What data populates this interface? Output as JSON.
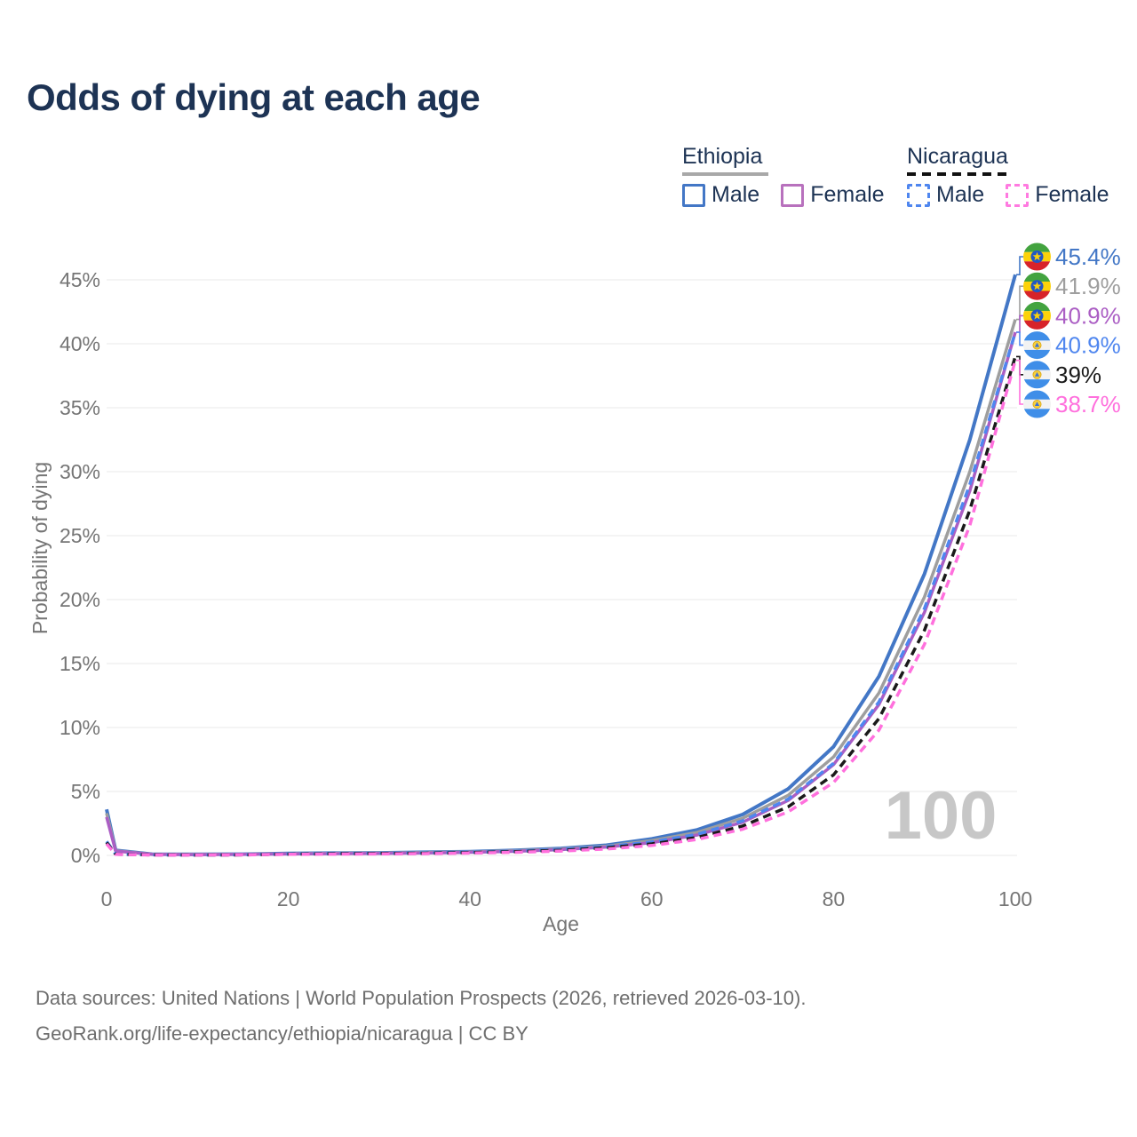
{
  "title": "Odds of dying at each age",
  "legend": {
    "groups": [
      {
        "country": "Ethiopia",
        "line_style": "solid",
        "underline_color": "#a8a8a8",
        "items": [
          {
            "label": "Male",
            "color": "#4377c6",
            "checked": false
          },
          {
            "label": "Female",
            "color": "#b871bd",
            "checked": false
          }
        ]
      },
      {
        "country": "Nicaragua",
        "line_style": "dashed",
        "underline_color": "#111111",
        "items": [
          {
            "label": "Male",
            "color": "#4f86ef",
            "checked": false
          },
          {
            "label": "Female",
            "color": "#ff7ae0",
            "checked": false
          }
        ]
      }
    ]
  },
  "chart_data": {
    "type": "line",
    "title": "Odds of dying at each age",
    "xlabel": "Age",
    "ylabel": "Probability of dying",
    "xlim": [
      0,
      100
    ],
    "ylim": [
      0,
      47
    ],
    "x_ticks": [
      0,
      20,
      40,
      60,
      80,
      100
    ],
    "y_ticks_percent": [
      0,
      5,
      10,
      15,
      20,
      25,
      30,
      35,
      40,
      45
    ],
    "grid": "horizontal",
    "legend_position": "top-right",
    "watermark": "100",
    "grid_color": "#e8e8e8",
    "axis_color": "#757575",
    "watermark_color": "#c7c7c7",
    "x": [
      0,
      1,
      5,
      10,
      15,
      20,
      25,
      30,
      35,
      40,
      45,
      50,
      55,
      60,
      65,
      70,
      75,
      80,
      85,
      90,
      95,
      100
    ],
    "series": [
      {
        "name": "Ethiopia Male",
        "country": "Ethiopia",
        "sex": "Male",
        "style": "solid",
        "color": "#4377c6",
        "flag": "ethiopia",
        "end_label": "45.4%",
        "values": [
          3.6,
          0.4,
          0.1,
          0.08,
          0.1,
          0.15,
          0.18,
          0.2,
          0.25,
          0.3,
          0.4,
          0.55,
          0.8,
          1.3,
          2.0,
          3.2,
          5.2,
          8.5,
          14.0,
          22.0,
          32.5,
          45.4
        ]
      },
      {
        "name": "Ethiopia",
        "country": "Ethiopia",
        "sex": "Both",
        "style": "solid",
        "color": "#9e9e9e",
        "flag": "ethiopia",
        "end_label": "41.9%",
        "values": [
          3.3,
          0.37,
          0.09,
          0.07,
          0.09,
          0.13,
          0.16,
          0.18,
          0.22,
          0.27,
          0.36,
          0.5,
          0.72,
          1.15,
          1.8,
          2.9,
          4.7,
          7.7,
          12.7,
          20.2,
          30.0,
          41.9
        ]
      },
      {
        "name": "Ethiopia Female",
        "country": "Ethiopia",
        "sex": "Female",
        "style": "solid",
        "color": "#ab5ec4",
        "flag": "ethiopia",
        "end_label": "40.9%",
        "values": [
          3.0,
          0.34,
          0.08,
          0.06,
          0.08,
          0.11,
          0.14,
          0.16,
          0.19,
          0.24,
          0.32,
          0.45,
          0.65,
          1.0,
          1.6,
          2.6,
          4.3,
          7.1,
          11.8,
          19.0,
          28.5,
          40.9
        ]
      },
      {
        "name": "Nicaragua Male",
        "country": "Nicaragua",
        "sex": "Male",
        "style": "dashed",
        "color": "#4f86ef",
        "flag": "nicaragua",
        "end_label": "40.9%",
        "values": [
          1.1,
          0.1,
          0.04,
          0.03,
          0.05,
          0.12,
          0.15,
          0.17,
          0.2,
          0.25,
          0.33,
          0.47,
          0.68,
          1.05,
          1.65,
          2.7,
          4.4,
          7.2,
          12.0,
          19.3,
          29.0,
          40.9
        ]
      },
      {
        "name": "Nicaragua",
        "country": "Nicaragua",
        "sex": "Both",
        "style": "dashed",
        "color": "#1a1a1a",
        "flag": "nicaragua",
        "end_label": "39%",
        "values": [
          1.0,
          0.09,
          0.04,
          0.03,
          0.04,
          0.1,
          0.13,
          0.15,
          0.17,
          0.22,
          0.29,
          0.4,
          0.6,
          0.9,
          1.4,
          2.3,
          3.8,
          6.3,
          10.7,
          17.6,
          27.0,
          39.0
        ]
      },
      {
        "name": "Nicaragua Female",
        "country": "Nicaragua",
        "sex": "Female",
        "style": "dashed",
        "color": "#ff70dd",
        "flag": "nicaragua",
        "end_label": "38.7%",
        "values": [
          0.9,
          0.08,
          0.03,
          0.03,
          0.04,
          0.08,
          0.1,
          0.12,
          0.14,
          0.18,
          0.24,
          0.34,
          0.5,
          0.78,
          1.25,
          2.05,
          3.4,
          5.7,
          9.8,
          16.5,
          25.8,
          38.7
        ]
      }
    ]
  },
  "footer": {
    "line1": "Data sources: United Nations | World Population Prospects (2026, retrieved 2026-03-10).",
    "line2": "GeoRank.org/life-expectancy/ethiopia/nicaragua | CC BY"
  }
}
